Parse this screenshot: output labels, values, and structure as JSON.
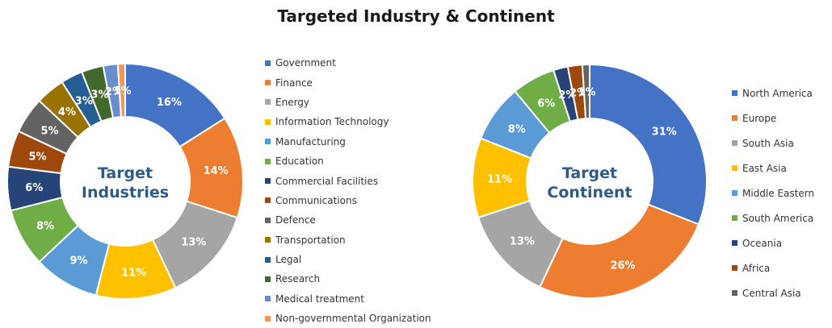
{
  "title": "Targeted Industry & Continent",
  "chart_data": [
    {
      "type": "donut",
      "center_label": [
        "Target",
        "Industries"
      ],
      "categories": [
        "Government",
        "Finance",
        "Energy",
        "Information Technology",
        "Manufacturing",
        "Education",
        "Commercial Facilities",
        "Communications",
        "Defence",
        "Transportation",
        "Legal",
        "Research",
        "Medical treatment",
        "Non-governmental Organization"
      ],
      "values": [
        16,
        14,
        13,
        11,
        9,
        8,
        6,
        5,
        5,
        4,
        3,
        3,
        2,
        1
      ],
      "labels": [
        "16%",
        "14%",
        "13%",
        "11%",
        "9%",
        "8%",
        "6%",
        "5%",
        "5%",
        "4%",
        "3%",
        "3%",
        "2%",
        "1%"
      ],
      "colors": [
        "#4472c4",
        "#ed7d31",
        "#a5a5a5",
        "#ffc000",
        "#5b9bd5",
        "#70ad47",
        "#264478",
        "#9e480e",
        "#636363",
        "#997300",
        "#255e91",
        "#43682b",
        "#698ed0",
        "#f1975a"
      ],
      "legend_position": "right"
    },
    {
      "type": "donut",
      "center_label": [
        "Target",
        "Continent"
      ],
      "categories": [
        "North America",
        "Europe",
        "South Asia",
        "East Asia",
        "Middle Eastern",
        "South America",
        "Oceania",
        "Africa",
        "Central Asia"
      ],
      "values": [
        31,
        26,
        13,
        11,
        8,
        6,
        2,
        2,
        1
      ],
      "labels": [
        "31%",
        "26%",
        "13%",
        "11%",
        "8%",
        "6%",
        "2%",
        "2%",
        "1%"
      ],
      "colors": [
        "#4472c4",
        "#ed7d31",
        "#a5a5a5",
        "#ffc000",
        "#5b9bd5",
        "#70ad47",
        "#264478",
        "#9e480e",
        "#636363"
      ],
      "legend_position": "right"
    }
  ]
}
